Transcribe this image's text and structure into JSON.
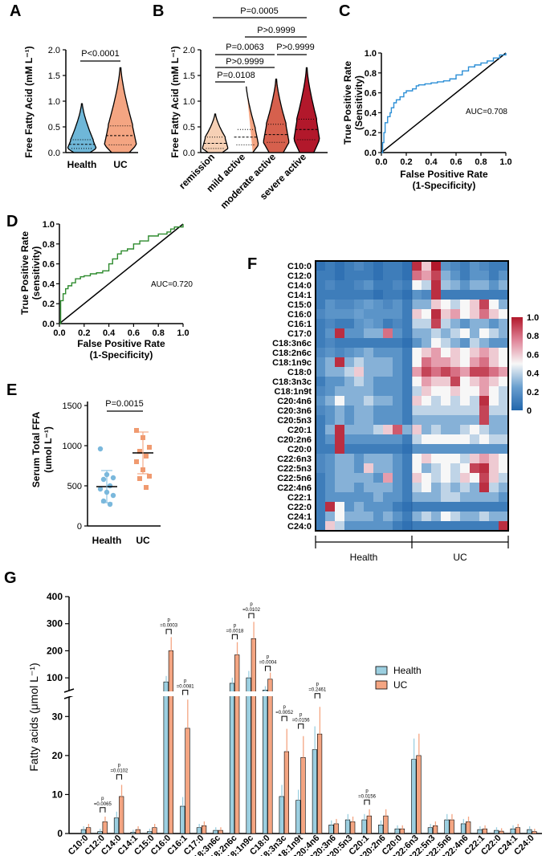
{
  "panels": {
    "A": {
      "letter": "A",
      "ylabel": "Free Fatty Acid (mM L⁻¹)",
      "yticks": [
        "0.0",
        "0.5",
        "1.0",
        "1.5",
        "2.0"
      ],
      "groups": [
        "Health",
        "UC"
      ],
      "pvalue": "P<0.0001",
      "colors": [
        "#6fb7d8",
        "#f4a582"
      ]
    },
    "B": {
      "letter": "B",
      "ylabel": "Free Fatty Acid (mM L⁻¹)",
      "yticks": [
        "0.0",
        "0.5",
        "1.0",
        "1.5",
        "2.0"
      ],
      "groups": [
        "remission",
        "mild active",
        "moderate active",
        "severe active"
      ],
      "pvalues": [
        "P=0.0005",
        "P>0.9999",
        "P=0.0063",
        "P>0.9999",
        "P>0.9999",
        "P=0.0108"
      ],
      "colors": [
        "#f6d0b5",
        "#f4a582",
        "#d6604d",
        "#b2182b"
      ]
    },
    "C": {
      "letter": "C",
      "ylabel_line1": "True Positive Rate",
      "ylabel_line2": "(Sensitivity)",
      "xlabel_line1": "False Positive Rate",
      "xlabel_line2": "(1-Specificity)",
      "auc": "AUC=0.708",
      "ticks": [
        "0.0",
        "0.2",
        "0.4",
        "0.6",
        "0.8",
        "1.0"
      ],
      "color": "#2c8fd6"
    },
    "D": {
      "letter": "D",
      "ylabel_line1": "True Positive Rate",
      "ylabel_line2": "(sensitivity)",
      "xlabel_line1": "False Positive Rate",
      "xlabel_line2": "(1-Specificity)",
      "auc": "AUC=0.720",
      "ticks": [
        "0.0",
        "0.2",
        "0.4",
        "0.6",
        "0.8",
        "1.0"
      ],
      "color": "#2e8b2e"
    },
    "E": {
      "letter": "E",
      "ylabel_line1": "Serum Total FFA",
      "ylabel_line2": "(umol L⁻¹)",
      "yticks": [
        "0",
        "500",
        "1000",
        "1500"
      ],
      "groups": [
        "Health",
        "UC"
      ],
      "pvalue": "P=0.0015",
      "colors": [
        "#7ab8dc",
        "#f09a70"
      ]
    },
    "F": {
      "letter": "F",
      "colorbar_ticks": [
        "1.0",
        "0.8",
        "0.6",
        "0.4",
        "0.2",
        "0"
      ],
      "group_labels": [
        "Health",
        "UC"
      ]
    },
    "G": {
      "letter": "G",
      "ylabel": "Fatty acids (μmol L⁻¹)",
      "legend": [
        "Health",
        "UC"
      ],
      "colors": [
        "#9ccfe0",
        "#f4a582"
      ]
    }
  },
  "chart_data": [
    {
      "panel": "A",
      "type": "violin",
      "ylim": [
        0,
        2.0
      ],
      "series": [
        {
          "name": "Health",
          "median": 0.16,
          "q1": 0.08,
          "q3": 0.25,
          "max": 0.95
        },
        {
          "name": "UC",
          "median": 0.33,
          "q1": 0.15,
          "q3": 0.52,
          "max": 1.65
        }
      ]
    },
    {
      "panel": "B",
      "type": "violin",
      "ylim": [
        0,
        2.0
      ],
      "series": [
        {
          "name": "remission",
          "median": 0.18,
          "q1": 0.08,
          "q3": 0.3,
          "max": 0.75
        },
        {
          "name": "mild active",
          "median": 0.3,
          "q1": 0.15,
          "q3": 0.45,
          "max": 1.33
        },
        {
          "name": "moderate active",
          "median": 0.35,
          "q1": 0.2,
          "q3": 0.55,
          "max": 1.43
        },
        {
          "name": "severe active",
          "median": 0.45,
          "q1": 0.25,
          "q3": 0.65,
          "max": 1.65
        }
      ]
    },
    {
      "panel": "C",
      "type": "line",
      "title": "ROC",
      "x": [
        0,
        0.01,
        0.02,
        0.03,
        0.05,
        0.07,
        0.08,
        0.1,
        0.12,
        0.15,
        0.18,
        0.2,
        0.25,
        0.28,
        0.3,
        0.35,
        0.4,
        0.45,
        0.5,
        0.55,
        0.6,
        0.65,
        0.7,
        0.75,
        0.8,
        0.85,
        0.9,
        0.95,
        1.0
      ],
      "y": [
        0,
        0.1,
        0.2,
        0.3,
        0.36,
        0.4,
        0.45,
        0.5,
        0.53,
        0.56,
        0.6,
        0.62,
        0.64,
        0.67,
        0.68,
        0.69,
        0.7,
        0.71,
        0.72,
        0.74,
        0.78,
        0.82,
        0.86,
        0.88,
        0.9,
        0.92,
        0.95,
        0.98,
        1.0
      ],
      "xlim": [
        0,
        1
      ],
      "ylim": [
        0,
        1
      ]
    },
    {
      "panel": "D",
      "type": "line",
      "title": "ROC",
      "x": [
        0,
        0.01,
        0.03,
        0.05,
        0.07,
        0.1,
        0.13,
        0.17,
        0.2,
        0.25,
        0.3,
        0.35,
        0.4,
        0.43,
        0.47,
        0.5,
        0.55,
        0.6,
        0.65,
        0.72,
        0.8,
        0.87,
        0.9,
        0.93,
        1.0
      ],
      "y": [
        0,
        0.23,
        0.3,
        0.35,
        0.38,
        0.41,
        0.45,
        0.47,
        0.48,
        0.5,
        0.51,
        0.53,
        0.6,
        0.65,
        0.7,
        0.73,
        0.75,
        0.8,
        0.83,
        0.88,
        0.9,
        0.92,
        0.95,
        0.97,
        1.0
      ],
      "xlim": [
        0,
        1
      ],
      "ylim": [
        0,
        1
      ]
    },
    {
      "panel": "E",
      "type": "scatter",
      "ylim": [
        0,
        1500
      ],
      "series": [
        {
          "name": "Health",
          "mean": 490,
          "sd": 200,
          "values": [
            960,
            640,
            600,
            580,
            500,
            460,
            420,
            380,
            310,
            270
          ]
        },
        {
          "name": "UC",
          "mean": 910,
          "sd": 260,
          "values": [
            1190,
            1100,
            980,
            930,
            870,
            800,
            700,
            620,
            590,
            480
          ]
        }
      ]
    },
    {
      "panel": "F",
      "type": "heatmap",
      "rows": [
        "C10:0",
        "C12:0",
        "C14:0",
        "C14:1",
        "C15:0",
        "C16:0",
        "C16:1",
        "C17:0",
        "C18:3n6c",
        "C18:2n6c",
        "C18:1n9c",
        "C18:0",
        "C18:3n3c",
        "C18:1n9t",
        "C20:4n6",
        "C20:3n6",
        "C20:5n3",
        "C20:1",
        "C20:2n6",
        "C20:0",
        "C22:6n3",
        "C22:5n3",
        "C22:5n6",
        "C22:4n6",
        "C22:1",
        "C22:0",
        "C24:1",
        "C24:0"
      ],
      "columns_health": 10,
      "columns_uc": 10,
      "colorbar_range": [
        0,
        1.0
      ],
      "values": [
        [
          0.05,
          0.1,
          0.05,
          0.1,
          0.15,
          0.1,
          0.05,
          0.1,
          0.1,
          0.05,
          0.95,
          0.6,
          1.0,
          0.2,
          0.15,
          0.1,
          0.2,
          0.15,
          0.1,
          0.1
        ],
        [
          0.1,
          0.1,
          0.05,
          0.1,
          0.1,
          0.1,
          0.05,
          0.1,
          0.1,
          0.05,
          0.8,
          0.7,
          0.9,
          0.3,
          0.2,
          0.1,
          0.2,
          0.2,
          0.1,
          0.2
        ],
        [
          0.1,
          0.15,
          0.1,
          0.1,
          0.15,
          0.2,
          0.1,
          0.1,
          0.15,
          0.1,
          0.5,
          0.4,
          0.95,
          0.35,
          0.3,
          0.2,
          0.3,
          0.3,
          0.2,
          0.3
        ],
        [
          0.1,
          0.1,
          0.1,
          0.1,
          0.1,
          0.1,
          0.05,
          0.1,
          0.1,
          0.05,
          0.2,
          0.15,
          0.95,
          0.1,
          0.1,
          0.1,
          0.1,
          0.1,
          0.1,
          0.1
        ],
        [
          0.1,
          0.2,
          0.15,
          0.15,
          0.2,
          0.25,
          0.2,
          0.15,
          0.2,
          0.1,
          0.3,
          0.3,
          0.6,
          0.5,
          0.4,
          0.5,
          0.6,
          0.9,
          0.5,
          0.3
        ],
        [
          0.15,
          0.2,
          0.2,
          0.2,
          0.25,
          0.2,
          0.2,
          0.2,
          0.2,
          0.1,
          0.6,
          0.5,
          0.95,
          0.6,
          0.7,
          0.5,
          0.6,
          0.8,
          0.6,
          0.5
        ],
        [
          0.1,
          0.15,
          0.1,
          0.1,
          0.2,
          0.25,
          0.2,
          0.1,
          0.15,
          0.1,
          0.4,
          0.4,
          0.9,
          0.4,
          0.3,
          0.2,
          0.3,
          0.3,
          0.2,
          0.3
        ],
        [
          0.1,
          0.2,
          0.95,
          0.2,
          0.2,
          0.3,
          0.3,
          0.8,
          0.2,
          0.1,
          0.3,
          0.3,
          0.4,
          0.3,
          0.4,
          0.5,
          0.3,
          0.5,
          0.4,
          0.3
        ],
        [
          0.1,
          0.15,
          0.1,
          0.1,
          0.1,
          0.1,
          0.1,
          0.1,
          0.1,
          0.05,
          0.2,
          0.3,
          0.5,
          0.4,
          0.3,
          0.2,
          0.4,
          0.3,
          0.2,
          0.2
        ],
        [
          0.15,
          0.2,
          0.15,
          0.2,
          0.25,
          0.3,
          0.2,
          0.2,
          0.2,
          0.1,
          0.5,
          0.6,
          0.7,
          0.5,
          0.6,
          0.5,
          0.6,
          0.7,
          0.6,
          0.5
        ],
        [
          0.2,
          0.3,
          0.95,
          0.3,
          0.4,
          0.3,
          0.3,
          0.3,
          0.2,
          0.1,
          0.5,
          0.8,
          0.7,
          0.7,
          0.6,
          0.5,
          0.7,
          0.8,
          0.6,
          0.5
        ],
        [
          0.2,
          0.3,
          0.3,
          0.4,
          0.6,
          0.3,
          0.3,
          0.3,
          0.2,
          0.1,
          0.7,
          0.9,
          0.8,
          0.9,
          0.8,
          0.7,
          0.9,
          0.9,
          0.8,
          0.7
        ],
        [
          0.1,
          0.2,
          0.2,
          0.3,
          0.4,
          0.3,
          0.2,
          0.2,
          0.2,
          0.1,
          0.5,
          0.7,
          0.6,
          0.6,
          0.9,
          0.5,
          0.6,
          0.7,
          0.6,
          0.5
        ],
        [
          0.15,
          0.2,
          0.3,
          0.3,
          0.3,
          0.3,
          0.2,
          0.2,
          0.2,
          0.1,
          0.4,
          0.6,
          0.5,
          0.5,
          0.6,
          0.5,
          0.5,
          0.7,
          0.5,
          0.4
        ],
        [
          0.2,
          0.3,
          0.5,
          0.3,
          0.3,
          0.4,
          0.3,
          0.3,
          0.2,
          0.1,
          0.6,
          0.5,
          0.4,
          0.5,
          0.4,
          0.5,
          0.4,
          0.95,
          0.5,
          0.4
        ],
        [
          0.15,
          0.2,
          0.3,
          0.2,
          0.3,
          0.3,
          0.2,
          0.2,
          0.2,
          0.1,
          0.4,
          0.4,
          0.4,
          0.4,
          0.4,
          0.4,
          0.4,
          0.9,
          0.4,
          0.4
        ],
        [
          0.1,
          0.2,
          0.3,
          0.2,
          0.3,
          0.3,
          0.2,
          0.2,
          0.2,
          0.1,
          0.3,
          0.3,
          0.3,
          0.3,
          0.3,
          0.3,
          0.3,
          0.9,
          0.3,
          0.3
        ],
        [
          0.1,
          0.3,
          0.95,
          0.3,
          0.3,
          0.3,
          0.4,
          0.6,
          0.85,
          0.3,
          0.6,
          0.3,
          0.4,
          0.3,
          0.3,
          0.4,
          0.5,
          0.4,
          0.3,
          0.3
        ],
        [
          0.1,
          0.2,
          0.95,
          0.2,
          0.2,
          0.2,
          0.2,
          0.2,
          0.2,
          0.1,
          0.4,
          0.5,
          0.5,
          0.5,
          0.5,
          0.5,
          0.4,
          0.5,
          0.4,
          0.4
        ],
        [
          0.1,
          0.1,
          0.95,
          0.1,
          0.1,
          0.1,
          0.1,
          0.1,
          0.1,
          0.05,
          0.2,
          0.2,
          0.2,
          0.2,
          0.2,
          0.2,
          0.2,
          0.2,
          0.2,
          0.2
        ],
        [
          0.15,
          0.2,
          0.3,
          0.3,
          0.2,
          0.3,
          0.3,
          0.3,
          0.2,
          0.1,
          0.5,
          0.6,
          0.5,
          0.5,
          0.5,
          0.4,
          0.6,
          0.7,
          0.6,
          0.5
        ],
        [
          0.15,
          0.2,
          0.3,
          0.3,
          0.2,
          0.6,
          0.3,
          0.3,
          0.2,
          0.1,
          0.5,
          0.3,
          0.4,
          0.5,
          0.4,
          0.5,
          0.9,
          0.95,
          0.6,
          0.5
        ],
        [
          0.1,
          0.2,
          0.3,
          0.3,
          0.3,
          0.3,
          0.2,
          0.7,
          0.2,
          0.1,
          0.6,
          0.5,
          0.4,
          0.5,
          0.4,
          0.6,
          0.5,
          0.9,
          0.6,
          0.4
        ],
        [
          0.1,
          0.2,
          0.3,
          0.3,
          0.2,
          0.3,
          0.3,
          0.3,
          0.2,
          0.1,
          0.4,
          0.5,
          0.3,
          0.4,
          0.3,
          0.4,
          0.3,
          0.95,
          0.4,
          0.3
        ],
        [
          0.1,
          0.2,
          0.2,
          0.2,
          0.2,
          0.2,
          0.3,
          0.2,
          0.2,
          0.1,
          0.3,
          0.3,
          0.3,
          0.4,
          0.4,
          0.3,
          0.3,
          0.3,
          0.3,
          0.2
        ],
        [
          0.1,
          0.95,
          0.5,
          0.2,
          0.3,
          0.2,
          0.2,
          0.2,
          0.1,
          0.05,
          0.1,
          0.1,
          0.1,
          0.1,
          0.1,
          0.1,
          0.1,
          0.1,
          0.1,
          0.1
        ],
        [
          0.1,
          0.3,
          0.5,
          0.3,
          0.3,
          0.3,
          0.2,
          0.3,
          0.2,
          0.1,
          0.3,
          0.4,
          0.3,
          0.5,
          0.4,
          0.3,
          0.3,
          0.4,
          0.3,
          0.3
        ],
        [
          0.1,
          0.6,
          0.4,
          0.2,
          0.2,
          0.2,
          0.2,
          0.2,
          0.1,
          0.05,
          0.1,
          0.1,
          0.1,
          0.1,
          0.1,
          0.1,
          0.1,
          0.1,
          0.1,
          0.95
        ]
      ]
    },
    {
      "panel": "G",
      "type": "bar",
      "ylabel": "Fatty acids (μmol L⁻¹)",
      "axis_break": [
        35,
        50
      ],
      "yticks_lower": [
        "0",
        "10",
        "20",
        "30"
      ],
      "yticks_upper": [
        "100",
        "200",
        "300",
        "400"
      ],
      "categories": [
        "C10:0",
        "C12:0",
        "C14:0",
        "C14:1",
        "C15:0",
        "C16:0",
        "C16:1",
        "C17:0",
        "C18:3n6c",
        "C18:2n6c",
        "C18:1n9c",
        "C18:0",
        "C18:3n3c",
        "C18:1n9t",
        "C20:4n6",
        "C20:3n6",
        "C20:5n3",
        "C20:1",
        "C20:2n6",
        "C20:0",
        "C22:6n3",
        "C22:5n3",
        "C22:5n6",
        "C22:4n6",
        "C22:1",
        "C22:0",
        "C24:1",
        "C24:0"
      ],
      "series": [
        {
          "name": "Health",
          "values": [
            1.0,
            0.5,
            4.0,
            0.3,
            0.5,
            85,
            7,
            1.5,
            0.8,
            80,
            100,
            55,
            9.5,
            8.5,
            21.5,
            2.2,
            3.5,
            3.5,
            2.2,
            1.2,
            19,
            1.5,
            3.5,
            2.5,
            1.0,
            0.8,
            1.2,
            1.0
          ]
        },
        {
          "name": "UC",
          "values": [
            1.5,
            3.0,
            9.5,
            1.0,
            1.5,
            200,
            27,
            2.0,
            0.8,
            185,
            245,
            95,
            21,
            19.5,
            25.5,
            2.5,
            3.0,
            4.5,
            4.5,
            1.2,
            20,
            2.0,
            3.5,
            3.0,
            1.2,
            0.6,
            1.5,
            0.5
          ]
        }
      ],
      "annotations": [
        {
          "pair": [
            "C12:0"
          ],
          "text": "p =0.0065"
        },
        {
          "pair": [
            "C14:0"
          ],
          "text": "p =0.0102"
        },
        {
          "pair": [
            "C16:0"
          ],
          "text": "p =0.0003"
        },
        {
          "pair": [
            "C16:1"
          ],
          "text": "p =0.0081"
        },
        {
          "pair": [
            "C18:2n6c"
          ],
          "text": "p =0.0018"
        },
        {
          "pair": [
            "C18:1n9c"
          ],
          "text": "p =0.0102"
        },
        {
          "pair": [
            "C18:0"
          ],
          "text": "p =0.0004"
        },
        {
          "pair": [
            "C18:3n3c"
          ],
          "text": "p =0.0052"
        },
        {
          "pair": [
            "C18:1n9t"
          ],
          "text": "p =0.0156"
        },
        {
          "pair": [
            "C20:4n6"
          ],
          "text": "p =0.2461"
        },
        {
          "pair": [
            "C20:1"
          ],
          "text": "p =0.0156"
        }
      ]
    }
  ]
}
